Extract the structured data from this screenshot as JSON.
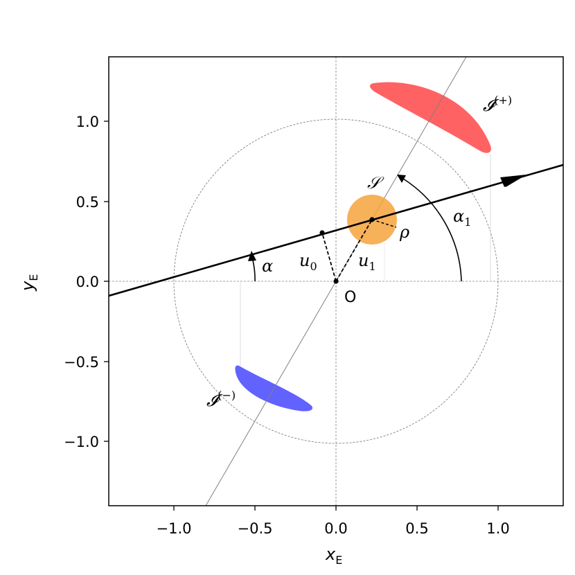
{
  "axes": {
    "xlabel": "x",
    "xlabel_sub": "E",
    "ylabel": "y",
    "ylabel_sub": "E",
    "xlim": [
      -1.4,
      1.4
    ],
    "ylim": [
      -1.4,
      1.4
    ],
    "xticks": [
      "−1.0",
      "−0.5",
      "0.0",
      "0.5",
      "1.0"
    ],
    "yticks": [
      "1.0",
      "0.5",
      "0.0",
      "−0.5",
      "−1.0"
    ]
  },
  "labels": {
    "origin": "O",
    "source": "𝒮",
    "image_plus": "𝓘",
    "image_plus_sup": "(+)",
    "image_minus": "𝓘",
    "image_minus_sup": "(−)",
    "u0": "u",
    "u0_sub": "0",
    "u1": "u",
    "u1_sub": "1",
    "rho": "ρ",
    "alpha": "α",
    "alpha1": "α",
    "alpha1_sub": "1"
  },
  "colors": {
    "source": "#f5a33c",
    "image_plus": "#ff5a5a",
    "image_minus": "#5a5aff",
    "trajectory": "#000000",
    "guide": "#808080"
  },
  "geometry_data": {
    "einstein_radius": 1.0,
    "source_center": [
      0.22,
      0.38
    ],
    "trajectory_angle_deg": 19.5,
    "u0_point": [
      -0.09,
      0.3
    ]
  }
}
